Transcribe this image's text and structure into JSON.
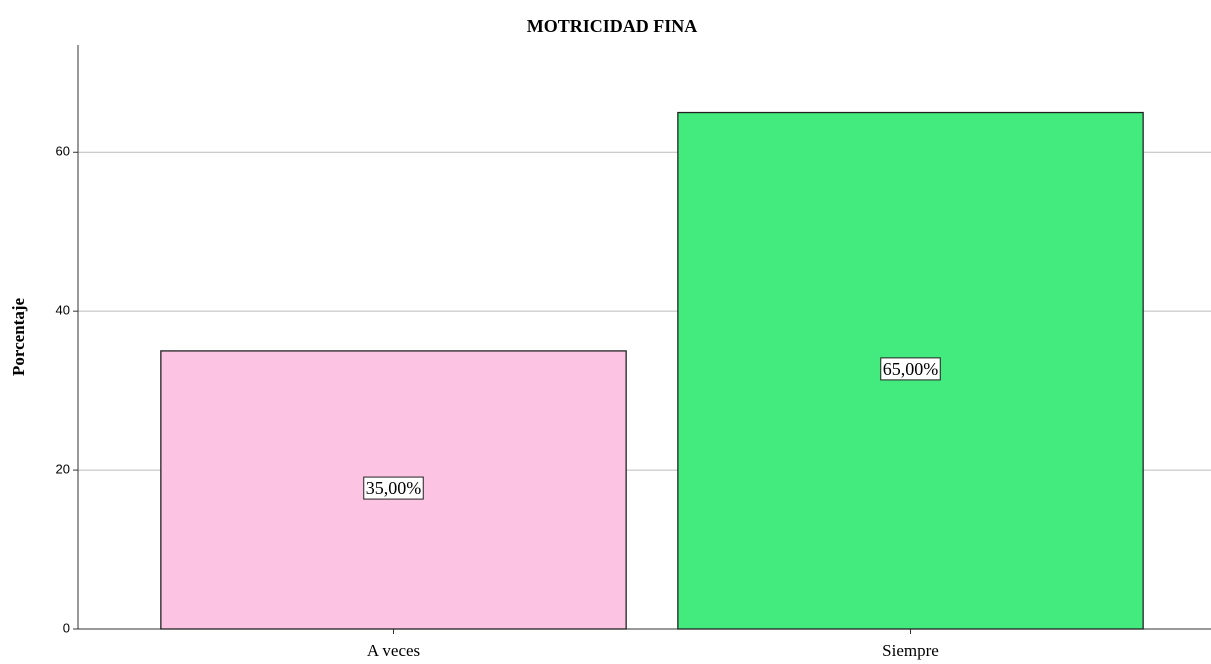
{
  "chart_data": {
    "type": "bar",
    "title": "MOTRICIDAD FINA",
    "y_label": "Porcentaje",
    "categories": [
      "A veces",
      "Siempre"
    ],
    "values": [
      35,
      65
    ],
    "value_labels": [
      "35,00%",
      "65,00%"
    ],
    "colors": [
      "#fcc3e3",
      "#43ea7e"
    ],
    "ylim": [
      0,
      73.5
    ],
    "yticks": [
      0,
      20,
      40,
      60
    ],
    "grid": true
  }
}
